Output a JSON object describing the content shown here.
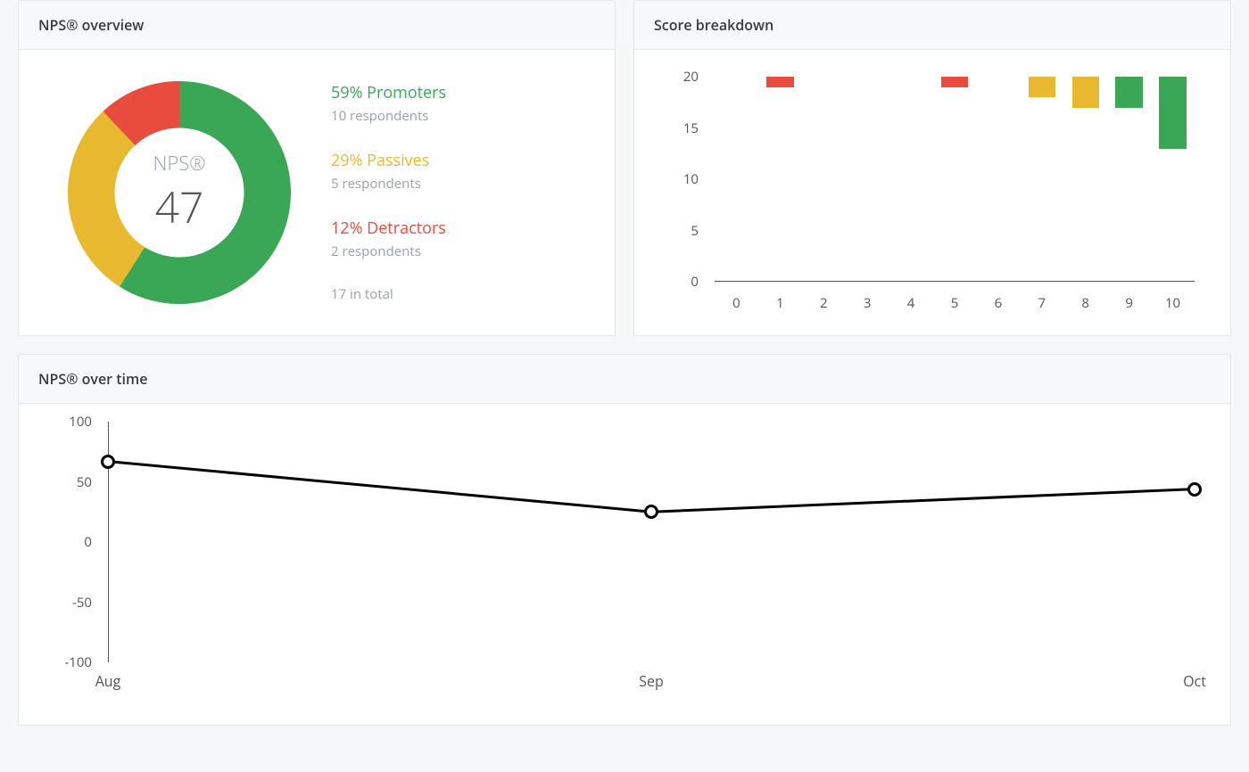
{
  "colors": {
    "promoter": "#3aa757",
    "passive": "#e8b92e",
    "detractor": "#e74c3c",
    "text_muted": "#9aa0a6",
    "axis": "#555555",
    "card_bg": "#ffffff",
    "page_bg": "#f5f6f7",
    "border": "#e6e7e9"
  },
  "overview": {
    "title": "NPS® overview",
    "center_label": "NPS®",
    "score": "47",
    "donut": {
      "type": "donut",
      "inner_radius_pct": 58,
      "start_angle_deg": 0,
      "segments": [
        {
          "key": "promoters",
          "pct": 59,
          "color": "#3aa757"
        },
        {
          "key": "passives",
          "pct": 29,
          "color": "#e8b92e"
        },
        {
          "key": "detractors",
          "pct": 12,
          "color": "#e74c3c"
        }
      ]
    },
    "legend": {
      "promoters": {
        "headline": "59% Promoters",
        "sub": "10 respondents"
      },
      "passives": {
        "headline": "29% Passives",
        "sub": "5 respondents"
      },
      "detractors": {
        "headline": "12% Detractors",
        "sub": "2 respondents"
      },
      "total": "17 in total"
    }
  },
  "breakdown": {
    "title": "Score breakdown",
    "type": "bar",
    "y": {
      "min": 0,
      "max": 20,
      "step": 5,
      "labels": [
        "0",
        "5",
        "10",
        "15",
        "20"
      ]
    },
    "x_labels": [
      "0",
      "1",
      "2",
      "3",
      "4",
      "5",
      "6",
      "7",
      "8",
      "9",
      "10"
    ],
    "bars": [
      {
        "x": "0",
        "value": 0,
        "color": null
      },
      {
        "x": "1",
        "value": 1,
        "color": "#e74c3c"
      },
      {
        "x": "2",
        "value": 0,
        "color": null
      },
      {
        "x": "3",
        "value": 0,
        "color": null
      },
      {
        "x": "4",
        "value": 0,
        "color": null
      },
      {
        "x": "5",
        "value": 1,
        "color": "#e74c3c"
      },
      {
        "x": "6",
        "value": 0,
        "color": null
      },
      {
        "x": "7",
        "value": 2,
        "color": "#e8b92e"
      },
      {
        "x": "8",
        "value": 3,
        "color": "#e8b92e"
      },
      {
        "x": "9",
        "value": 3,
        "color": "#3aa757"
      },
      {
        "x": "10",
        "value": 7,
        "color": "#3aa757"
      }
    ],
    "bar_width_pct": 62
  },
  "overtime": {
    "title": "NPS® over time",
    "type": "line",
    "y": {
      "min": -100,
      "max": 100,
      "step": 50,
      "labels": [
        "-100",
        "-50",
        "0",
        "50",
        "100"
      ]
    },
    "x_labels": [
      "Aug",
      "Sep",
      "Oct"
    ],
    "points": [
      {
        "x": "Aug",
        "y": 67
      },
      {
        "x": "Sep",
        "y": 25
      },
      {
        "x": "Oct",
        "y": 44
      }
    ],
    "line_color": "#000000",
    "line_width": 3,
    "marker": {
      "radius": 8,
      "fill": "#ffffff",
      "stroke": "#000000",
      "stroke_width": 3
    }
  }
}
